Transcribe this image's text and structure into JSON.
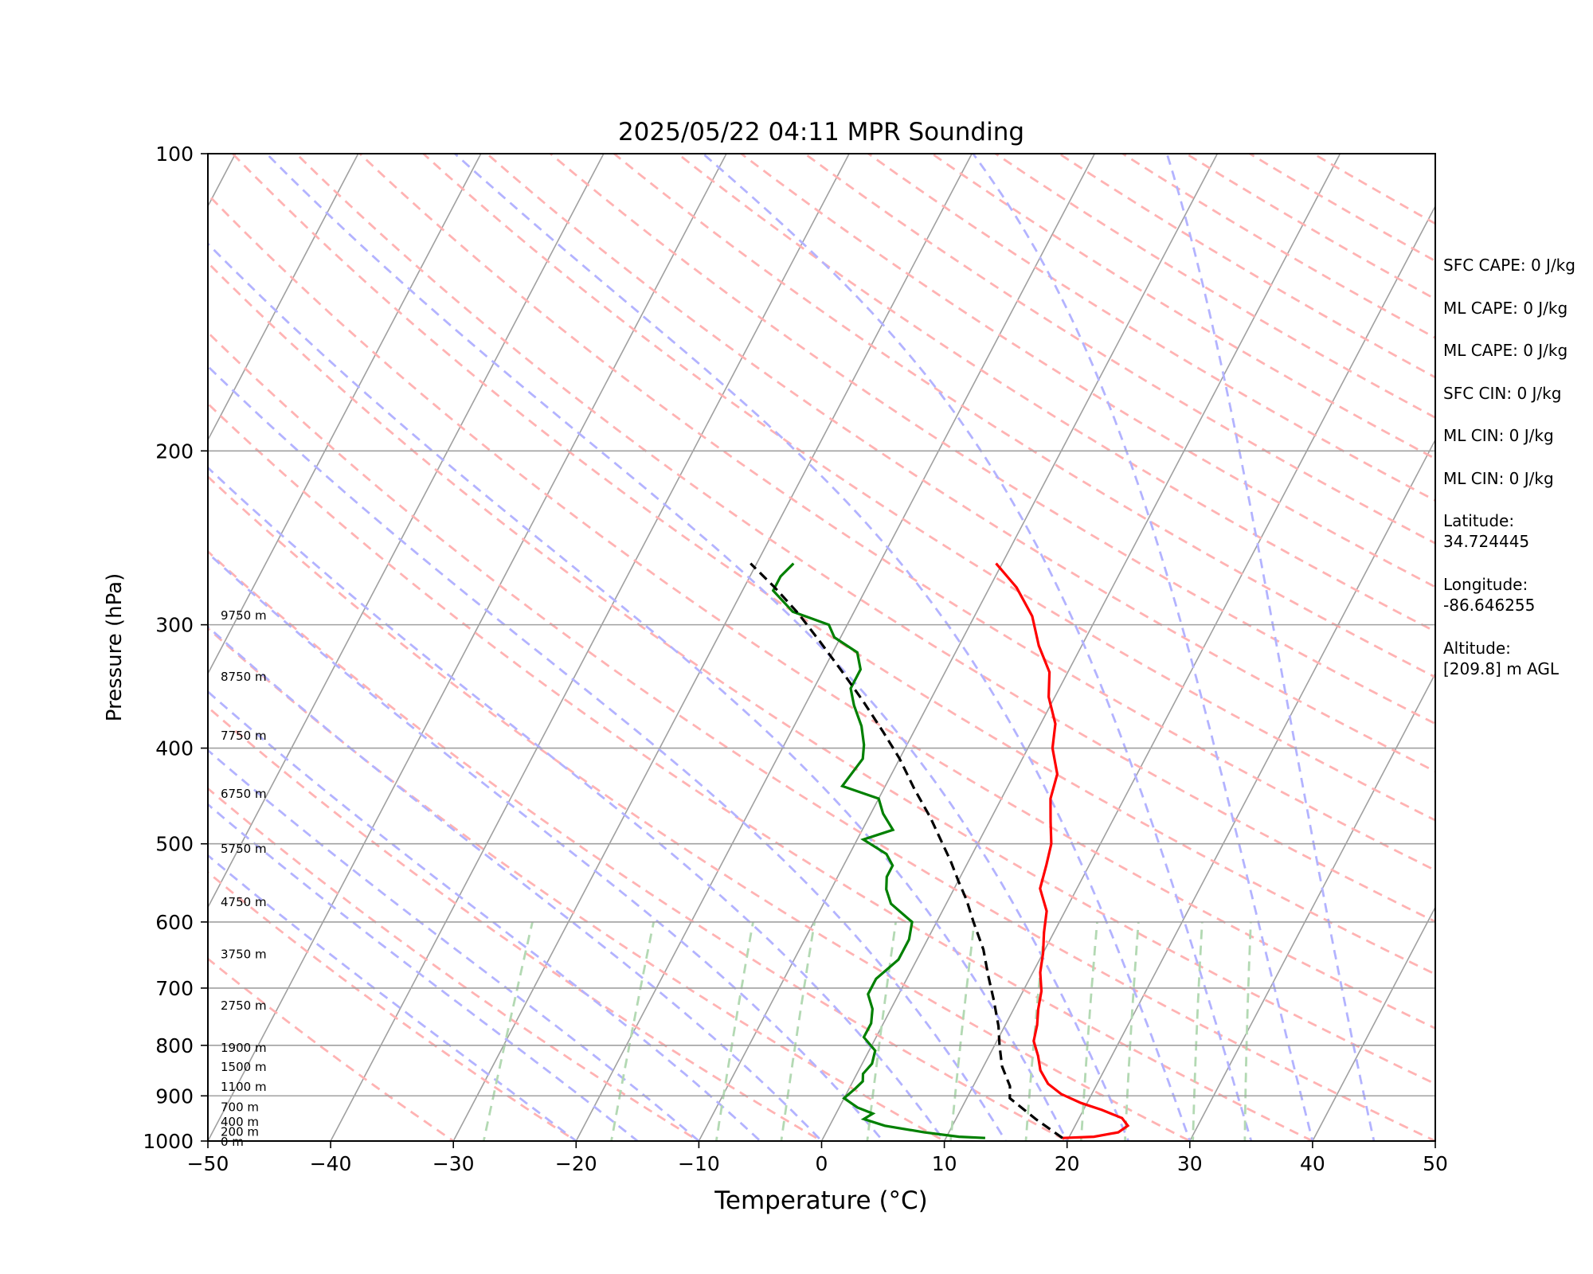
{
  "chart_data": {
    "type": "line",
    "subtype": "skew-T log-P sounding",
    "title": "2025/05/22 04:11 MPR Sounding",
    "xlabel": "Temperature (°C)",
    "ylabel": "Pressure (hPa)",
    "xlim": [
      -50,
      50
    ],
    "ylim": [
      1000,
      100
    ],
    "y_scale": "log",
    "x_ticks": [
      "−50",
      "−40",
      "−30",
      "−20",
      "−10",
      "0",
      "10",
      "20",
      "30",
      "40",
      "50"
    ],
    "y_ticks": [
      "100",
      "200",
      "300",
      "400",
      "500",
      "600",
      "700",
      "800",
      "900",
      "1000"
    ],
    "grid": true,
    "colors": {
      "temperature": "#ff0000",
      "dewpoint": "#008000",
      "parcel": "#000000",
      "dry_adiabat": "#ffb3b3",
      "moist_adiabat": "#b3b3ff",
      "mixing_ratio": "#b3d9b3",
      "isotherm": "#a0a0a0"
    },
    "height_labels": [
      {
        "label": "0 m",
        "p": 1000
      },
      {
        "label": "200 m",
        "p": 977
      },
      {
        "label": "400 m",
        "p": 955
      },
      {
        "label": "700 m",
        "p": 922
      },
      {
        "label": "1100 m",
        "p": 880
      },
      {
        "label": "1500 m",
        "p": 840
      },
      {
        "label": "1900 m",
        "p": 803
      },
      {
        "label": "2750 m",
        "p": 728
      },
      {
        "label": "3750 m",
        "p": 646
      },
      {
        "label": "4750 m",
        "p": 572
      },
      {
        "label": "5750 m",
        "p": 505
      },
      {
        "label": "6750 m",
        "p": 444
      },
      {
        "label": "7750 m",
        "p": 388
      },
      {
        "label": "8750 m",
        "p": 338
      },
      {
        "label": "9750 m",
        "p": 293
      }
    ],
    "series": [
      {
        "name": "Temperature",
        "points": [
          [
            19.5,
            993
          ],
          [
            22.0,
            990
          ],
          [
            23.8,
            980
          ],
          [
            24.3,
            965
          ],
          [
            23.5,
            948
          ],
          [
            21.5,
            930
          ],
          [
            19.5,
            915
          ],
          [
            17.5,
            896
          ],
          [
            16.0,
            875
          ],
          [
            14.8,
            848
          ],
          [
            14.0,
            820
          ],
          [
            13.0,
            792
          ],
          [
            12.6,
            763
          ],
          [
            12.0,
            735
          ],
          [
            11.5,
            705
          ],
          [
            10.6,
            675
          ],
          [
            10.0,
            645
          ],
          [
            9.2,
            615
          ],
          [
            8.5,
            585
          ],
          [
            7.0,
            555
          ],
          [
            6.5,
            525
          ],
          [
            6.0,
            500
          ],
          [
            5.0,
            475
          ],
          [
            4.0,
            450
          ],
          [
            3.5,
            425
          ],
          [
            2.0,
            400
          ],
          [
            1.2,
            378
          ],
          [
            -0.5,
            355
          ],
          [
            -1.5,
            335
          ],
          [
            -3.5,
            315
          ],
          [
            -5.3,
            294
          ],
          [
            -7.8,
            275
          ],
          [
            -10.5,
            260
          ]
        ]
      },
      {
        "name": "Dewpoint",
        "points": [
          [
            13.2,
            993
          ],
          [
            11.0,
            990
          ],
          [
            8.0,
            980
          ],
          [
            4.5,
            965
          ],
          [
            2.5,
            950
          ],
          [
            3.0,
            938
          ],
          [
            1.5,
            925
          ],
          [
            0.0,
            905
          ],
          [
            0.5,
            885
          ],
          [
            0.8,
            870
          ],
          [
            0.5,
            855
          ],
          [
            0.8,
            835
          ],
          [
            0.5,
            810
          ],
          [
            -1.0,
            785
          ],
          [
            -1.0,
            760
          ],
          [
            -1.5,
            735
          ],
          [
            -2.5,
            710
          ],
          [
            -2.5,
            685
          ],
          [
            -1.5,
            655
          ],
          [
            -1.5,
            625
          ],
          [
            -2.0,
            600
          ],
          [
            -4.5,
            575
          ],
          [
            -5.5,
            556
          ],
          [
            -6.0,
            540
          ],
          [
            -6.0,
            526
          ],
          [
            -7.0,
            512
          ],
          [
            -9.5,
            495
          ],
          [
            -7.5,
            484
          ],
          [
            -9.0,
            466
          ],
          [
            -10.0,
            450
          ],
          [
            -13.5,
            437
          ],
          [
            -13.0,
            410
          ],
          [
            -13.5,
            397
          ],
          [
            -14.5,
            380
          ],
          [
            -16.0,
            362
          ],
          [
            -17.0,
            348
          ],
          [
            -17.0,
            333
          ],
          [
            -18.0,
            320
          ],
          [
            -20.5,
            309
          ],
          [
            -21.5,
            300
          ],
          [
            -25.0,
            291
          ],
          [
            -27.5,
            277
          ],
          [
            -27.5,
            268
          ],
          [
            -27.0,
            260
          ]
        ]
      },
      {
        "name": "Parcel",
        "points": [
          [
            19.5,
            993
          ],
          [
            16.5,
            950
          ],
          [
            13.5,
            905
          ],
          [
            13.0,
            880
          ],
          [
            11.5,
            840
          ],
          [
            10.4,
            800
          ],
          [
            9.5,
            765
          ],
          [
            8.0,
            720
          ],
          [
            6.5,
            680
          ],
          [
            5.0,
            640
          ],
          [
            3.0,
            600
          ],
          [
            1.5,
            570
          ],
          [
            0.0,
            545
          ],
          [
            -1.5,
            520
          ],
          [
            -3.0,
            498
          ],
          [
            -5.0,
            470
          ],
          [
            -7.5,
            440
          ],
          [
            -10.0,
            410
          ],
          [
            -12.5,
            385
          ],
          [
            -15.5,
            358
          ],
          [
            -18.5,
            334
          ],
          [
            -21.5,
            312
          ],
          [
            -24.5,
            292
          ],
          [
            -27.5,
            275
          ],
          [
            -30.5,
            260
          ]
        ]
      }
    ]
  },
  "stats": [
    "SFC CAPE: 0 J/kg",
    "ML CAPE: 0 J/kg",
    "ML CAPE: 0 J/kg",
    "SFC CIN: 0 J/kg",
    "ML CIN: 0 J/kg",
    "ML CIN: 0 J/kg"
  ],
  "location": {
    "lat_label": "Latitude:",
    "lat_value": "34.724445",
    "lon_label": "Longitude:",
    "lon_value": "-86.646255",
    "alt_label": "Altitude:",
    "alt_value": "[209.8] m AGL"
  }
}
